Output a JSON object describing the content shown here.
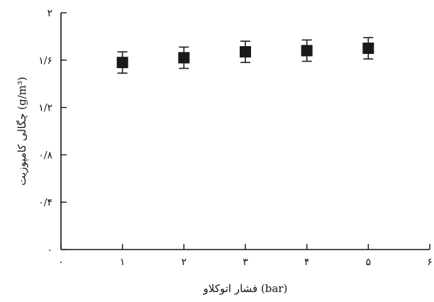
{
  "chart_data": {
    "type": "scatter",
    "title": "",
    "xlabel": "فشار اتوکلاو (bar)",
    "ylabel": "چگالی کامپوزیت (g/m³)",
    "xlim": [
      0,
      6
    ],
    "ylim": [
      0,
      2
    ],
    "x_ticks": [
      0,
      1,
      2,
      3,
      4,
      5,
      6
    ],
    "x_tick_labels": [
      "۰",
      "۱",
      "۲",
      "۳",
      "۴",
      "۵",
      "۶"
    ],
    "y_ticks": [
      0,
      0.4,
      0.8,
      1.2,
      1.6,
      2.0
    ],
    "y_tick_labels": [
      "۰",
      "۰/۴",
      "۰/۸",
      "۱/۲",
      "۱/۶",
      "۲"
    ],
    "grid": false,
    "marker": "square",
    "points": [
      {
        "x": 1,
        "y": 1.58,
        "err": 0.09
      },
      {
        "x": 2,
        "y": 1.62,
        "err": 0.09
      },
      {
        "x": 3,
        "y": 1.67,
        "err": 0.09
      },
      {
        "x": 4,
        "y": 1.68,
        "err": 0.09
      },
      {
        "x": 5,
        "y": 1.7,
        "err": 0.09
      }
    ],
    "colors": {
      "axis": "#111111",
      "marker": "#1a1a1a"
    }
  }
}
